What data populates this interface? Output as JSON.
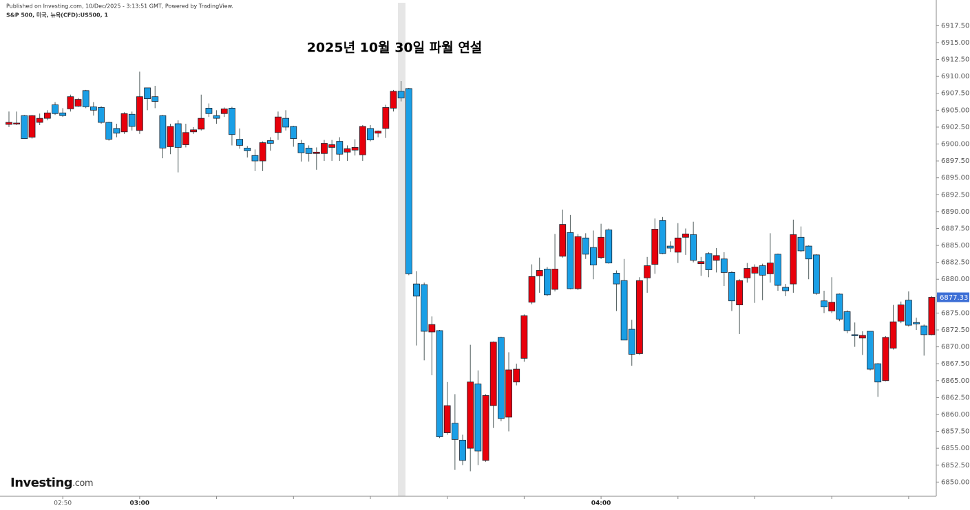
{
  "chart_data": {
    "type": "candlestick",
    "header": "Published on Investing.com, 10/Dec/2025 - 3:13:51 GMT, Powered by TradingView.",
    "symbol": "S&P 500, 미국, 뉴욕(CFD):US500, 1",
    "title": "2025년 10월 30일 파월 연설",
    "brand": {
      "name": "Investing",
      "suffix": ".com"
    },
    "categories": [
      null,
      null,
      null,
      null,
      null,
      null,
      null,
      "02:50",
      null,
      null,
      null,
      null,
      null,
      null,
      null,
      null,
      null,
      "03:00",
      null,
      null,
      null,
      null,
      null,
      null,
      null,
      null,
      null,
      null,
      null,
      null,
      null,
      null,
      null,
      null,
      null,
      null,
      null,
      null,
      null,
      null,
      null,
      null,
      null,
      null,
      null,
      null,
      null,
      null,
      null,
      null,
      null,
      null,
      null,
      null,
      null,
      null,
      null,
      null,
      null,
      null,
      null,
      null,
      null,
      null,
      null,
      null,
      null,
      null,
      null,
      null,
      null,
      null,
      null,
      null,
      null,
      null,
      null,
      "04:00",
      null,
      null,
      null,
      null,
      null,
      null,
      null,
      null,
      null,
      null,
      null,
      null,
      null,
      null,
      null,
      null,
      null,
      null,
      null,
      null,
      null,
      null,
      null,
      null,
      null,
      null,
      null,
      null,
      null,
      null,
      null,
      null,
      null,
      null,
      null,
      null,
      null,
      null,
      null,
      null,
      null,
      null,
      null
    ],
    "open": [
      6902.9,
      6903.0,
      6904.2,
      6901.0,
      6903.2,
      6903.8,
      6905.8,
      6904.6,
      6905.2,
      6905.6,
      6907.9,
      6905.5,
      6905.4,
      6903.2,
      6902.3,
      6901.8,
      6904.4,
      6902.0,
      6908.3,
      6907.0,
      6904.2,
      6899.6,
      6903.0,
      6899.9,
      6901.8,
      6902.2,
      6905.3,
      6904.2,
      6904.5,
      6905.3,
      6900.7,
      6899.4,
      6898.3,
      6897.5,
      6900.5,
      6901.7,
      6903.8,
      6902.6,
      6900.1,
      6899.4,
      6898.6,
      6898.6,
      6899.5,
      6900.4,
      6898.8,
      6899.1,
      6898.4,
      6902.3,
      6901.6,
      6902.3,
      6905.3,
      6907.8,
      6908.2,
      6879.3,
      6879.2,
      6872.2,
      6872.4,
      6857.3,
      6858.7,
      6856.2,
      6855.0,
      6864.5,
      6853.2,
      6861.3,
      6871.4,
      6859.6,
      6864.8,
      6868.3,
      6876.6,
      6880.5,
      6881.5,
      6878.5,
      6883.4,
      6886.9,
      6878.6,
      6886.1,
      6884.7,
      6883.2,
      6887.3,
      6880.9,
      6879.8,
      6872.6,
      6869.0,
      6880.2,
      6882.2,
      6888.7,
      6884.9,
      6884.0,
      6886.2,
      6886.6,
      6882.3,
      6883.8,
      6882.8,
      6883.0,
      6881.0,
      6876.2,
      6880.2,
      6880.9,
      6882.0,
      6880.8,
      6883.7,
      6878.8,
      6879.3,
      6886.2,
      6884.9,
      6883.6,
      6876.8,
      6875.3,
      6877.8,
      6875.2,
      6871.8,
      6871.3,
      6872.3,
      6867.5,
      6865.0,
      6869.8,
      6873.8,
      6876.9,
      6873.6,
      6873.1,
      6871.8
    ],
    "high": [
      6904.8,
      6904.8,
      6904.3,
      6904.3,
      6904.5,
      6905.0,
      6906.2,
      6905.3,
      6907.3,
      6906.8,
      6908.0,
      6906.2,
      6905.6,
      6903.3,
      6903.0,
      6904.7,
      6904.8,
      6910.7,
      6908.3,
      6908.6,
      6904.3,
      6903.0,
      6903.5,
      6903.0,
      6902.5,
      6907.3,
      6906.0,
      6905.0,
      6905.4,
      6905.5,
      6902.3,
      6899.7,
      6899.2,
      6900.4,
      6901.0,
      6904.8,
      6905.0,
      6902.7,
      6900.6,
      6899.8,
      6899.5,
      6900.6,
      6900.6,
      6901.0,
      6899.8,
      6900.7,
      6902.8,
      6902.8,
      6902.0,
      6905.8,
      6908.0,
      6909.3,
      6908.3,
      6881.2,
      6879.5,
      6874.5,
      6872.5,
      6864.8,
      6863.0,
      6857.0,
      6870.3,
      6866.5,
      6863.0,
      6870.8,
      6871.5,
      6869.2,
      6867.5,
      6874.8,
      6882.2,
      6883.2,
      6881.8,
      6886.7,
      6890.3,
      6889.5,
      6886.7,
      6886.8,
      6887.2,
      6888.2,
      6887.5,
      6881.3,
      6883.0,
      6874.0,
      6880.3,
      6883.3,
      6889.0,
      6889.2,
      6885.6,
      6888.3,
      6887.5,
      6888.5,
      6883.3,
      6884.0,
      6884.6,
      6884.0,
      6881.2,
      6880.0,
      6882.4,
      6882.2,
      6882.3,
      6886.8,
      6883.8,
      6879.3,
      6888.8,
      6887.8,
      6885.0,
      6883.7,
      6878.3,
      6880.3,
      6877.9,
      6875.4,
      6873.6,
      6872.3,
      6872.3,
      6867.6,
      6871.6,
      6876.2,
      6876.7,
      6878.2,
      6874.3,
      6873.3,
      6877.5
    ],
    "low": [
      6902.5,
      6902.8,
      6900.8,
      6900.8,
      6902.8,
      6903.5,
      6904.3,
      6904.0,
      6904.8,
      6905.5,
      6905.3,
      6904.2,
      6903.0,
      6900.5,
      6901.0,
      6901.5,
      6902.0,
      6901.5,
      6905.0,
      6905.3,
      6897.9,
      6898.5,
      6895.8,
      6899.5,
      6901.5,
      6902.0,
      6904.0,
      6903.0,
      6904.0,
      6899.8,
      6899.3,
      6898.0,
      6896.0,
      6896.0,
      6899.0,
      6900.6,
      6902.0,
      6899.6,
      6897.4,
      6897.4,
      6896.2,
      6897.5,
      6897.5,
      6897.5,
      6897.5,
      6898.3,
      6897.5,
      6900.4,
      6901.0,
      6900.9,
      6904.8,
      6906.3,
      6880.6,
      6870.2,
      6868.0,
      6865.8,
      6856.5,
      6857.0,
      6851.8,
      6852.5,
      6851.6,
      6852.5,
      6853.0,
      6858.0,
      6859.0,
      6857.5,
      6864.3,
      6867.8,
      6876.3,
      6878.0,
      6877.5,
      6878.2,
      6883.2,
      6878.5,
      6878.4,
      6883.0,
      6880.0,
      6883.0,
      6882.3,
      6875.3,
      6871.0,
      6867.2,
      6868.8,
      6878.0,
      6880.8,
      6883.7,
      6884.0,
      6882.4,
      6883.6,
      6882.5,
      6880.5,
      6880.3,
      6881.0,
      6879.0,
      6875.3,
      6871.9,
      6879.5,
      6876.5,
      6876.9,
      6879.5,
      6878.3,
      6877.5,
      6878.0,
      6884.0,
      6880.0,
      6877.7,
      6875.0,
      6875.0,
      6873.8,
      6872.0,
      6870.0,
      6868.8,
      6866.5,
      6862.6,
      6864.9,
      6869.6,
      6873.5,
      6873.0,
      6872.5,
      6868.7,
      6871.7
    ],
    "close": [
      6903.2,
      6903.1,
      6900.8,
      6904.2,
      6903.8,
      6904.6,
      6904.5,
      6904.2,
      6907.0,
      6906.6,
      6905.5,
      6905.0,
      6903.2,
      6900.7,
      6901.6,
      6904.5,
      6902.6,
      6907.0,
      6906.7,
      6906.3,
      6899.4,
      6902.6,
      6899.5,
      6901.7,
      6902.1,
      6903.8,
      6904.5,
      6903.8,
      6905.2,
      6901.4,
      6899.8,
      6899.0,
      6897.5,
      6900.2,
      6900.1,
      6904.0,
      6902.5,
      6900.8,
      6898.7,
      6898.6,
      6898.8,
      6900.1,
      6899.9,
      6898.5,
      6899.3,
      6899.5,
      6902.6,
      6900.6,
      6901.9,
      6905.4,
      6907.8,
      6906.8,
      6880.8,
      6877.5,
      6872.3,
      6873.3,
      6856.7,
      6861.3,
      6856.3,
      6853.2,
      6864.8,
      6854.6,
      6862.8,
      6870.7,
      6859.4,
      6866.6,
      6866.7,
      6874.6,
      6880.4,
      6881.3,
      6877.7,
      6881.5,
      6888.1,
      6878.6,
      6886.3,
      6883.7,
      6882.1,
      6886.2,
      6882.4,
      6879.3,
      6871.0,
      6868.9,
      6879.8,
      6882.0,
      6887.4,
      6883.8,
      6884.6,
      6886.1,
      6886.7,
      6882.8,
      6882.6,
      6881.4,
      6883.5,
      6881.0,
      6876.8,
      6879.8,
      6881.6,
      6881.8,
      6880.6,
      6882.4,
      6879.1,
      6878.3,
      6886.6,
      6884.2,
      6883.0,
      6877.9,
      6875.9,
      6876.6,
      6874.1,
      6872.4,
      6871.7,
      6871.7,
      6866.7,
      6864.8,
      6871.4,
      6873.7,
      6876.2,
      6873.2,
      6873.4,
      6871.8,
      6877.33
    ],
    "up_color": "#e8000b",
    "down_color": "#1a9fe6",
    "last_price": 6877.33,
    "last_price_color": "#3d6fd6",
    "ylim": [
      6847.9,
      6921.3
    ],
    "yticks": [
      {
        "value": 6850,
        "label": "6850.00"
      },
      {
        "value": 6852.5,
        "label": "6852.50"
      },
      {
        "value": 6855,
        "label": "6855.00"
      },
      {
        "value": 6857.5,
        "label": "6857.50"
      },
      {
        "value": 6860,
        "label": "6860.00"
      },
      {
        "value": 6862.5,
        "label": "6862.50"
      },
      {
        "value": 6865,
        "label": "6865.00"
      },
      {
        "value": 6867.5,
        "label": "6867.50"
      },
      {
        "value": 6870,
        "label": "6870.00"
      },
      {
        "value": 6872.5,
        "label": "6872.50"
      },
      {
        "value": 6875,
        "label": "6875.00"
      },
      {
        "value": 6877.5,
        "label": "6877.50"
      },
      {
        "value": 6880,
        "label": "6880.00"
      },
      {
        "value": 6882.5,
        "label": "6882.50"
      },
      {
        "value": 6885,
        "label": "6885.00"
      },
      {
        "value": 6887.5,
        "label": "6887.50"
      },
      {
        "value": 6890,
        "label": "6890.00"
      },
      {
        "value": 6892.5,
        "label": "6892.50"
      },
      {
        "value": 6895,
        "label": "6895.00"
      },
      {
        "value": 6897.5,
        "label": "6897.50"
      },
      {
        "value": 6900,
        "label": "6900.00"
      },
      {
        "value": 6902.5,
        "label": "6902.50"
      },
      {
        "value": 6905,
        "label": "6905.00"
      },
      {
        "value": 6907.5,
        "label": "6907.50"
      },
      {
        "value": 6910,
        "label": "6910.00"
      },
      {
        "value": 6912.5,
        "label": "6912.50"
      },
      {
        "value": 6915,
        "label": "6915.00"
      },
      {
        "value": 6917.5,
        "label": "6917.50"
      }
    ],
    "grid": false
  }
}
